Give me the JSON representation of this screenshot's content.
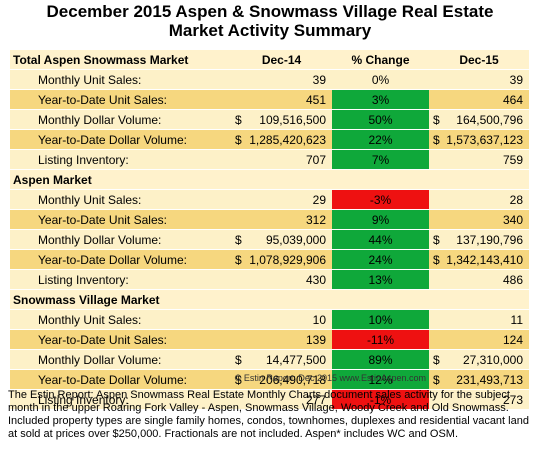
{
  "title_line1": "December 2015 Aspen & Snowmass Village Real Estate",
  "title_line2": "Market Activity Summary",
  "columns": {
    "prev": "Dec-14",
    "change": "% Change",
    "curr": "Dec-15"
  },
  "sections": [
    {
      "name": "Total Aspen Snowmass Market",
      "rows": [
        {
          "label": "Monthly Unit Sales:",
          "prev": "39",
          "change": "0%",
          "curr": "39",
          "status": "neutral"
        },
        {
          "label": "Year-to-Date Unit Sales:",
          "prev": "451",
          "change": "3%",
          "curr": "464",
          "status": "up"
        },
        {
          "label": "Monthly Dollar Volume:",
          "prev": "109,516,500",
          "change": "50%",
          "curr": "164,500,796",
          "status": "up"
        },
        {
          "label": "Year-to-Date Dollar Volume:",
          "prev": "1,285,420,623",
          "change": "22%",
          "curr": "1,573,637,123",
          "status": "up"
        },
        {
          "label": "Listing Inventory:",
          "prev": "707",
          "change": "7%",
          "curr": "759",
          "status": "up"
        }
      ]
    },
    {
      "name": "Aspen Market",
      "rows": [
        {
          "label": "Monthly Unit Sales:",
          "prev": "29",
          "change": "-3%",
          "curr": "28",
          "status": "down"
        },
        {
          "label": "Year-to-Date Unit Sales:",
          "prev": "312",
          "change": "9%",
          "curr": "340",
          "status": "up"
        },
        {
          "label": "Monthly Dollar Volume:",
          "prev": "95,039,000",
          "change": "44%",
          "curr": "137,190,796",
          "status": "up"
        },
        {
          "label": "Year-to-Date Dollar Volume:",
          "prev": "1,078,929,906",
          "change": "24%",
          "curr": "1,342,143,410",
          "status": "up"
        },
        {
          "label": "Listing Inventory:",
          "prev": "430",
          "change": "13%",
          "curr": "486",
          "status": "up"
        }
      ]
    },
    {
      "name": "Snowmass Village Market",
      "rows": [
        {
          "label": "Monthly Unit Sales:",
          "prev": "10",
          "change": "10%",
          "curr": "11",
          "status": "up"
        },
        {
          "label": "Year-to-Date Unit Sales:",
          "prev": "139",
          "change": "-11%",
          "curr": "124",
          "status": "down"
        },
        {
          "label": "Monthly Dollar Volume:",
          "prev": "14,477,500",
          "change": "89%",
          "curr": "27,310,000",
          "status": "up"
        },
        {
          "label": "Year-to-Date Dollar Volume:",
          "prev": "206,490,718",
          "change": "12%",
          "curr": "231,493,713",
          "status": "up"
        },
        {
          "label": "Listing Inventory:",
          "prev": "277",
          "change": "-1%",
          "curr": "273",
          "status": "down"
        }
      ]
    }
  ],
  "currency_symbol": "$",
  "copyright": "© Estin Report: Dec 2015 www.EstinAspen.com",
  "footnote": "The Estin Report: Aspen Snowmass Real Estate Monthly Charts document sales activity for the subject month in the upper Roaring Fork Valley - Aspen, Snowmass Village, Woody Creek and Old Snowmass. Included property types are single family homes, condos, townhomes, duplexes and residential vacant land at sold at prices over $250,000. Fractionals are not included. Aspen* includes WC and OSM.",
  "colors": {
    "header_bg": "#fff2cc",
    "row_light": "#fdf1c8",
    "row_dark": "#f6d77f",
    "positive": "#0fa83a",
    "negative": "#ee1111"
  }
}
